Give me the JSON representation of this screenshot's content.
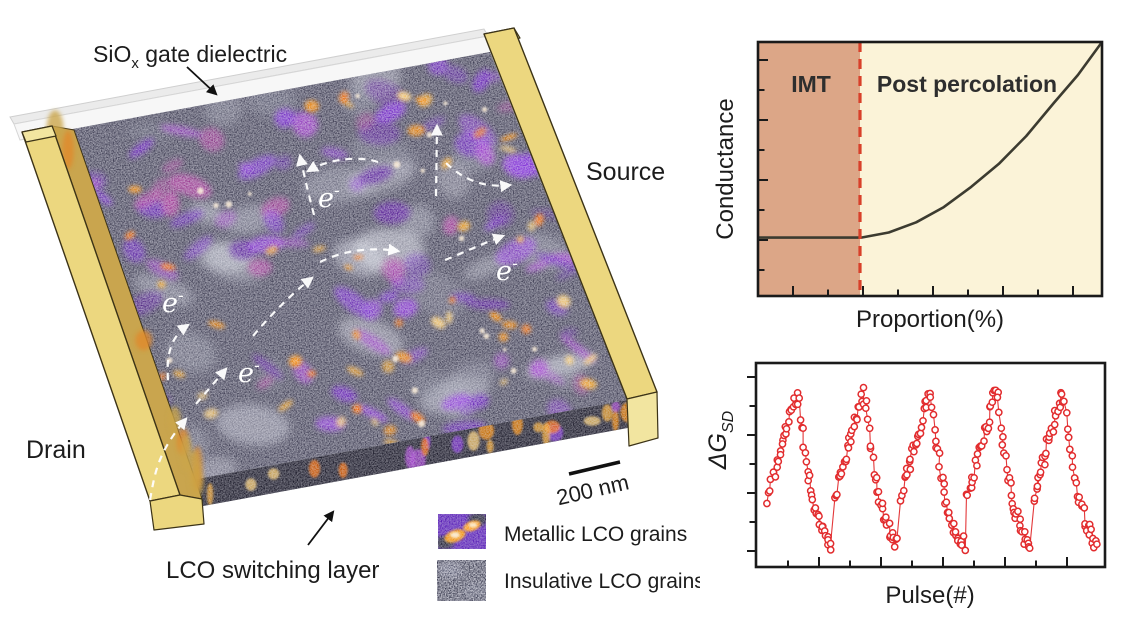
{
  "device": {
    "labels": {
      "gate_prefix": "SiO",
      "gate_sub": "x",
      "gate_suffix": " gate dielectric",
      "source": "Source",
      "drain": "Drain",
      "switching_layer": "LCO switching layer",
      "scale_bar": "200 nm",
      "electron_base": "e",
      "electron_sup": "-"
    },
    "legend": {
      "metallic": "Metallic LCO grains",
      "insulative": "Insulative LCO grains"
    },
    "colors": {
      "electrode_top": "#f2e5a0",
      "electrode_face": "#ecd77f",
      "electrode_side": "#c9a54e",
      "electrode_outline": "#4a3f17",
      "dielectric": "#f7f7f7",
      "dielectric_side": "#ebebeb",
      "lco_base": "#454459",
      "lco_front": "#201f2e",
      "metallic_purple": "#7d2bd8",
      "hotspot_orange": "#f59511",
      "insulative_gray": "#a9abb9",
      "path_white": "#ffffff"
    }
  },
  "chart_data": [
    {
      "type": "line",
      "title": "",
      "xlabel": "Proportion(%)",
      "ylabel": "Conductance",
      "xlim": [
        0,
        1
      ],
      "ylim": [
        0,
        1
      ],
      "axis_numbers": "none",
      "x_ticks": 9,
      "y_ticks": 8,
      "regions": [
        {
          "label": "IMT",
          "x_range": [
            0,
            0.3
          ],
          "color": "#dca687"
        },
        {
          "label": "Post percolation",
          "x_range": [
            0.3,
            1
          ],
          "color": "#fbf3d8"
        }
      ],
      "percolation_threshold": {
        "x": 0.3,
        "color": "#d8402a",
        "style": "dashed"
      },
      "series": [
        {
          "name": "Conductance",
          "color": "#3c3b30",
          "x": [
            0,
            0.3,
            0.38,
            0.46,
            0.54,
            0.62,
            0.7,
            0.78,
            0.86,
            0.93,
            1.0
          ],
          "y": [
            0.23,
            0.23,
            0.25,
            0.29,
            0.35,
            0.43,
            0.52,
            0.63,
            0.76,
            0.87,
            1.0
          ]
        }
      ]
    },
    {
      "type": "scatter",
      "title": "",
      "xlabel": "Pulse(#)",
      "ylabel": "ΔG_SD",
      "ylabel_main": "ΔG",
      "ylabel_sub": "SD",
      "marker": "open-circle",
      "color": "#e22c2e",
      "axis_numbers": "none",
      "x_ticks": 10,
      "y_ticks": 7,
      "cycles": 5,
      "points_per_cycle": 56,
      "cycle_profile_t": [
        0,
        0.06,
        0.13,
        0.2,
        0.27,
        0.34,
        0.41,
        0.46,
        0.5,
        0.56,
        0.63,
        0.72,
        0.82,
        0.92,
        1.0
      ],
      "cycle_profile_y": [
        0.33,
        0.44,
        0.54,
        0.63,
        0.72,
        0.82,
        0.92,
        0.97,
        0.88,
        0.68,
        0.5,
        0.33,
        0.2,
        0.11,
        0.07
      ],
      "jitter": 0.045,
      "seed": 20240601
    }
  ]
}
